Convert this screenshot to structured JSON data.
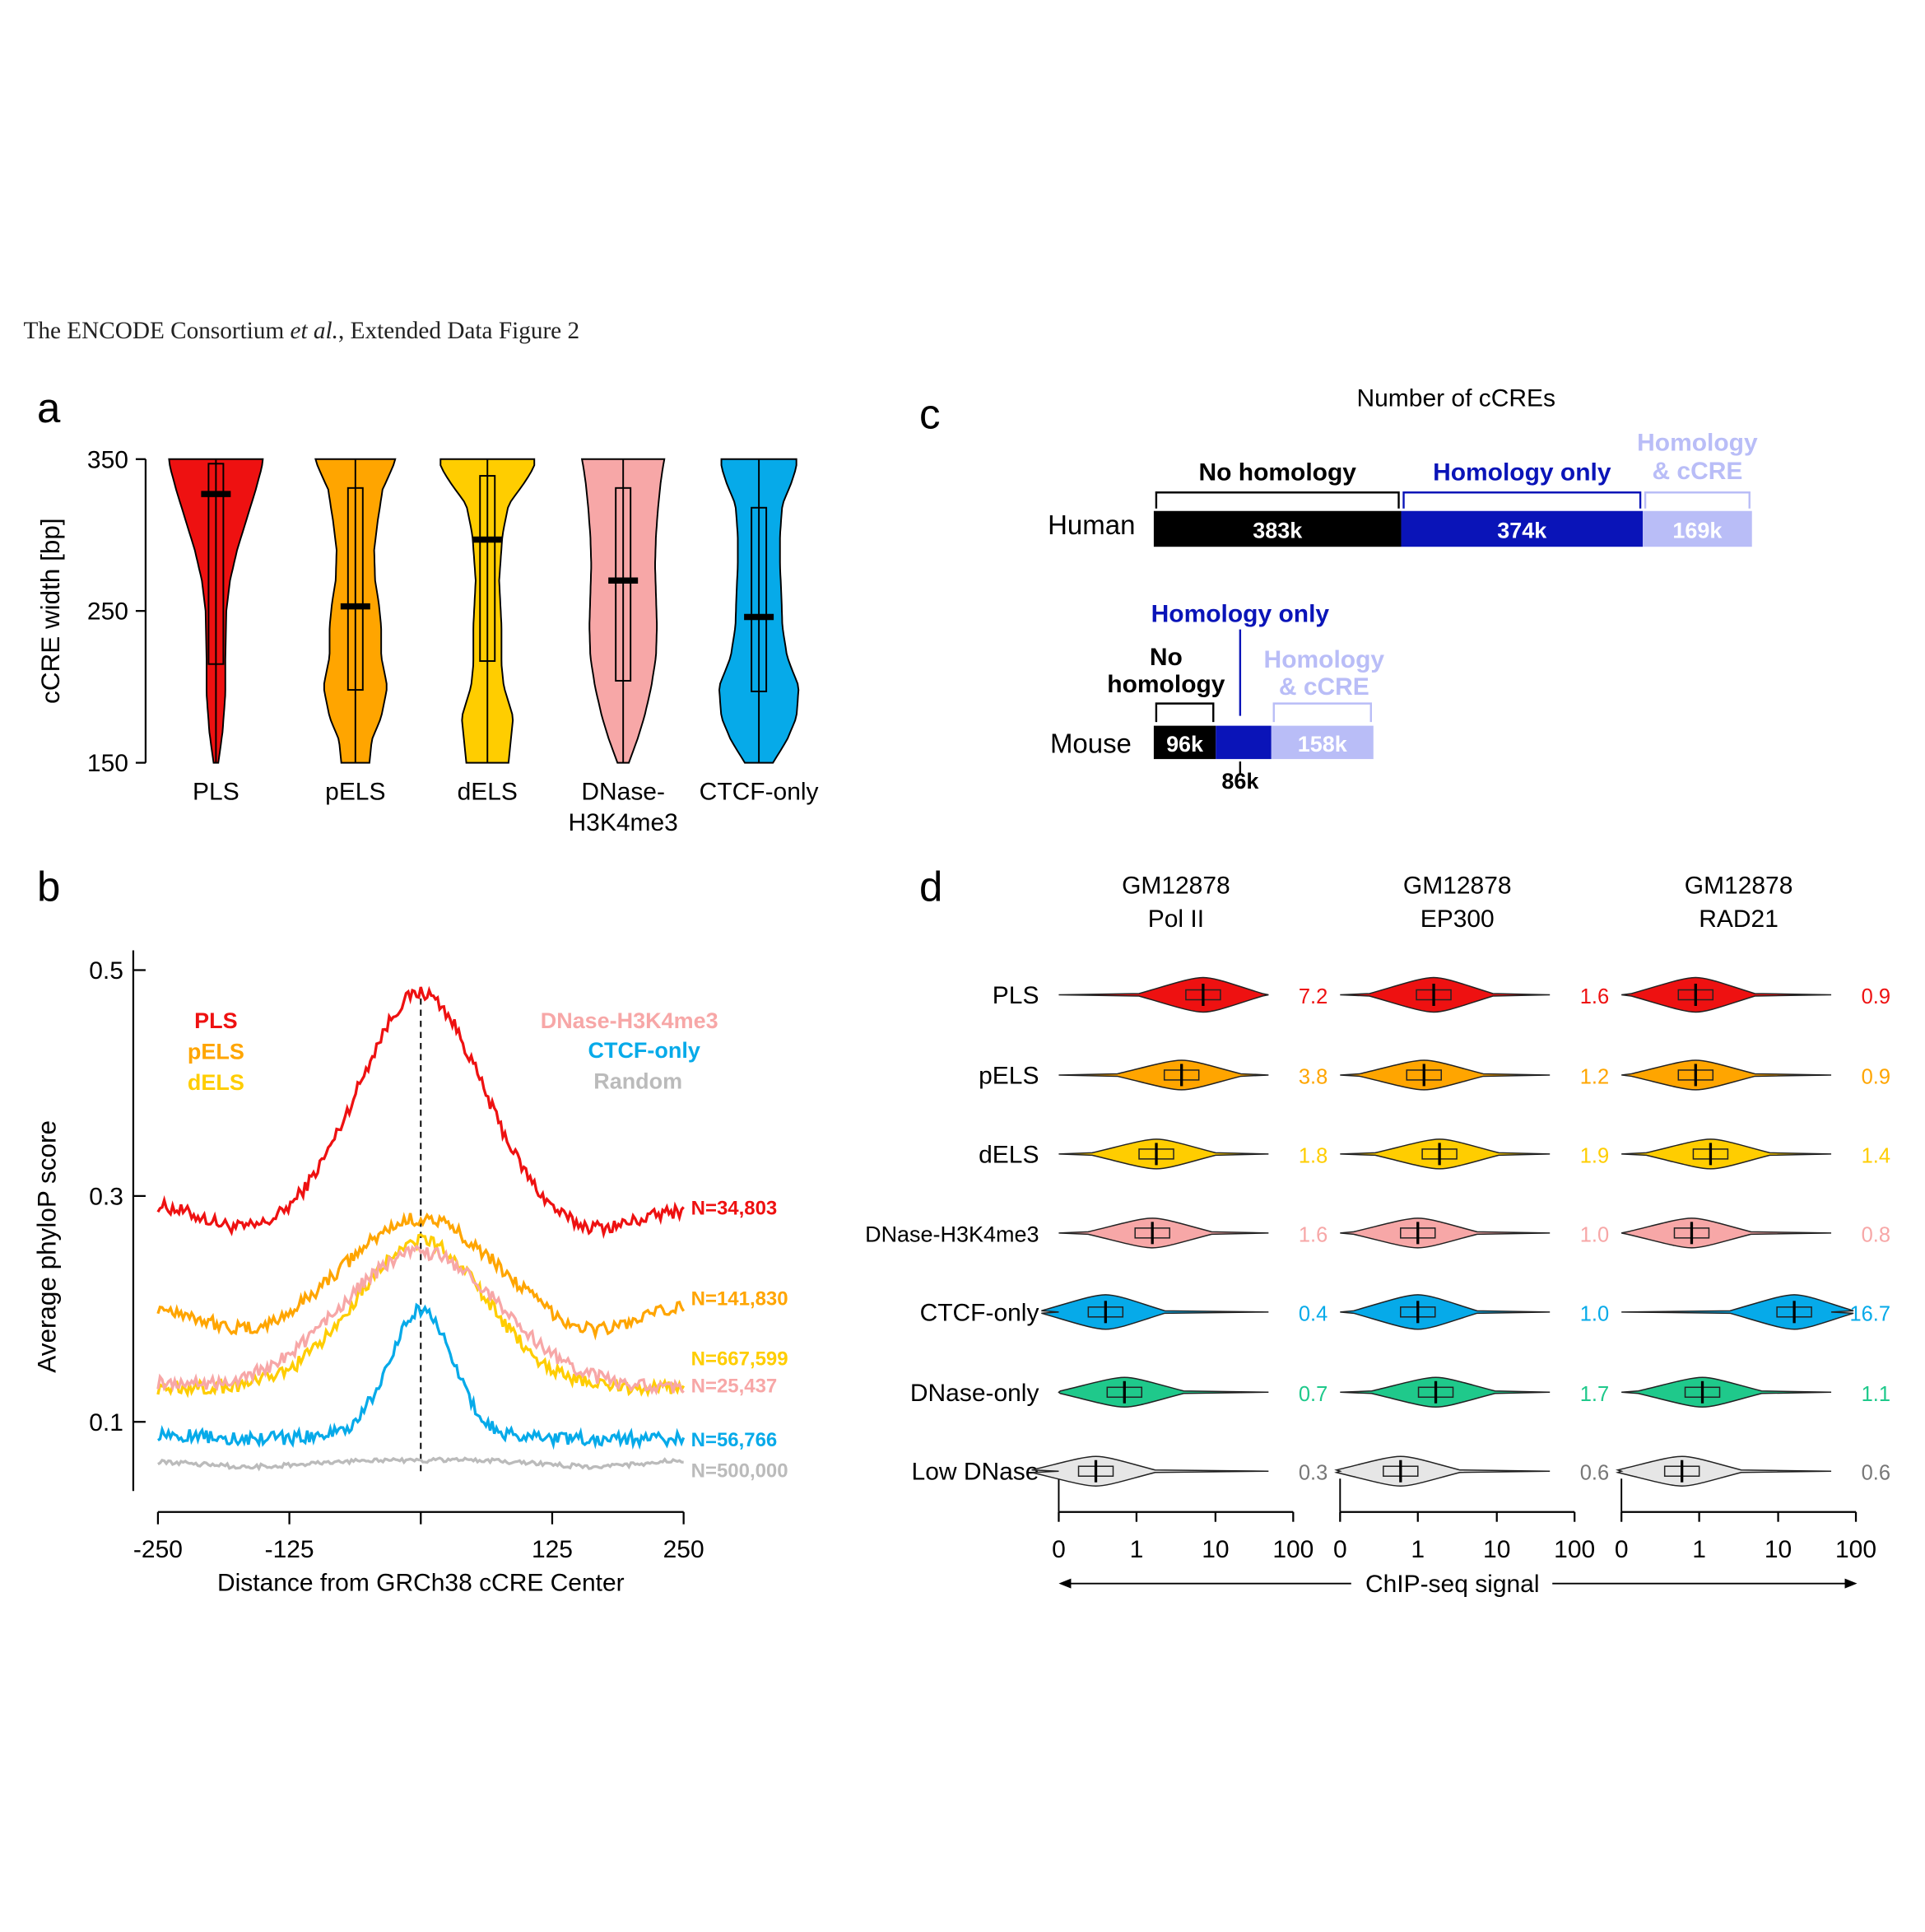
{
  "header": {
    "prefix": "The ENCODE Consortium ",
    "etal": "et al.",
    "suffix": ", Extended Data Figure 2"
  },
  "colors": {
    "PLS": "#ee1111",
    "pELS": "#ffa500",
    "dELS": "#ffcd00",
    "DNase-H3K4me3": "#f7a7a7",
    "CTCF-only": "#06aae9",
    "DNase-only": "#1fc98b",
    "Low DNase": "#e6e6e6",
    "Random": "#bbbbbb",
    "no_homology": "#000000",
    "homology_only": "#0a14b8",
    "homology_ccre": "#b9bdf7"
  },
  "chart_data": [
    {
      "panel": "a",
      "type": "violin",
      "ylabel": "cCRE width [bp]",
      "ylim": [
        150,
        350
      ],
      "yticks": [
        "350",
        "250",
        "150"
      ],
      "groups": [
        {
          "label": "PLS",
          "median": 327,
          "q1": 215,
          "q3": 347,
          "shape": [
            [
              150,
              0.05
            ],
            [
              170,
              0.14
            ],
            [
              195,
              0.2
            ],
            [
              220,
              0.2
            ],
            [
              250,
              0.22
            ],
            [
              270,
              0.3
            ],
            [
              290,
              0.45
            ],
            [
              310,
              0.65
            ],
            [
              330,
              0.85
            ],
            [
              345,
              0.98
            ],
            [
              350,
              1
            ]
          ]
        },
        {
          "label": "pELS",
          "median": 253,
          "q1": 198,
          "q3": 331,
          "shape": [
            [
              150,
              0.3
            ],
            [
              165,
              0.35
            ],
            [
              180,
              0.55
            ],
            [
              200,
              0.68
            ],
            [
              220,
              0.55
            ],
            [
              240,
              0.55
            ],
            [
              255,
              0.5
            ],
            [
              270,
              0.42
            ],
            [
              290,
              0.4
            ],
            [
              310,
              0.48
            ],
            [
              330,
              0.58
            ],
            [
              345,
              0.8
            ],
            [
              350,
              0.85
            ]
          ]
        },
        {
          "label": "dELS",
          "median": 297,
          "q1": 217,
          "q3": 339,
          "shape": [
            [
              150,
              0.45
            ],
            [
              165,
              0.5
            ],
            [
              180,
              0.55
            ],
            [
              200,
              0.35
            ],
            [
              215,
              0.3
            ],
            [
              240,
              0.3
            ],
            [
              270,
              0.25
            ],
            [
              300,
              0.32
            ],
            [
              320,
              0.45
            ],
            [
              335,
              0.8
            ],
            [
              345,
              1
            ],
            [
              350,
              1
            ]
          ]
        },
        {
          "label": "DNase-\nH3K4me3",
          "median": 270,
          "q1": 204,
          "q3": 331,
          "shape": [
            [
              150,
              0.12
            ],
            [
              165,
              0.3
            ],
            [
              180,
              0.45
            ],
            [
              200,
              0.6
            ],
            [
              220,
              0.7
            ],
            [
              240,
              0.72
            ],
            [
              260,
              0.7
            ],
            [
              280,
              0.68
            ],
            [
              300,
              0.7
            ],
            [
              320,
              0.75
            ],
            [
              335,
              0.8
            ],
            [
              345,
              0.85
            ],
            [
              350,
              0.88
            ]
          ]
        },
        {
          "label": "CTCF-only",
          "median": 246,
          "q1": 197,
          "q3": 318,
          "shape": [
            [
              150,
              0.3
            ],
            [
              165,
              0.6
            ],
            [
              180,
              0.8
            ],
            [
              200,
              0.85
            ],
            [
              220,
              0.6
            ],
            [
              240,
              0.5
            ],
            [
              260,
              0.48
            ],
            [
              280,
              0.45
            ],
            [
              300,
              0.45
            ],
            [
              320,
              0.5
            ],
            [
              335,
              0.7
            ],
            [
              345,
              0.8
            ],
            [
              350,
              0.8
            ]
          ]
        }
      ]
    },
    {
      "panel": "b",
      "type": "line",
      "xlabel": "Distance from GRCh38 cCRE Center",
      "ylabel": "Average phyloP score",
      "xlim": [
        -250,
        250
      ],
      "ylim": [
        0.05,
        0.5
      ],
      "xticks": [
        "-250",
        "-125",
        "125",
        "250"
      ],
      "yticks": [
        "0.5",
        "0.3",
        "0.1"
      ],
      "series": [
        {
          "name": "PLS",
          "n_label": "N=34,803",
          "left": 0.295,
          "right": 0.29,
          "min": 0.27,
          "peak": 0.48,
          "width": 55
        },
        {
          "name": "pELS",
          "n_label": "N=141,830",
          "left": 0.205,
          "right": 0.205,
          "min": 0.18,
          "peak": 0.28,
          "width": 60
        },
        {
          "name": "dELS",
          "n_label": "N=667,599",
          "left": 0.13,
          "right": 0.13,
          "min": 0.13,
          "peak": 0.26,
          "width": 62
        },
        {
          "name": "DNase-H3K4me3",
          "n_label": "N=25,437",
          "left": 0.135,
          "right": 0.13,
          "min": 0.13,
          "peak": 0.25,
          "width": 75
        },
        {
          "name": "CTCF-only",
          "n_label": "N=56,766",
          "left": 0.09,
          "right": 0.085,
          "min": 0.085,
          "peak": 0.2,
          "width": 30
        },
        {
          "name": "Random",
          "n_label": "N=500,000",
          "left": 0.065,
          "right": 0.067,
          "min": 0.06,
          "peak": 0.062,
          "width": 100
        }
      ]
    },
    {
      "panel": "c",
      "type": "bar",
      "title": "Number of cCREs",
      "rows": [
        {
          "label": "Human",
          "segments": [
            {
              "name": "No homology",
              "value": 383,
              "text": "383k"
            },
            {
              "name": "Homology only",
              "value": 374,
              "text": "374k"
            },
            {
              "name": "Homology & cCRE",
              "value": 169,
              "text": "169k"
            }
          ]
        },
        {
          "label": "Mouse",
          "segments": [
            {
              "name": "No homology",
              "value": 96,
              "text": "96k"
            },
            {
              "name": "Homology only",
              "value": 86,
              "text": "86k"
            },
            {
              "name": "Homology & cCRE",
              "value": 158,
              "text": "158k"
            }
          ]
        }
      ],
      "labels": {
        "no_homology": "No homology",
        "no_homology_line1": "No",
        "no_homology_line2": "homology",
        "homology_only": "Homology only",
        "homology_ccre_line1": "Homology",
        "homology_ccre_line2": "& cCRE"
      }
    },
    {
      "panel": "d",
      "type": "violin",
      "xlabel": "ChIP-seq signal",
      "x_scale": "log",
      "xticks": [
        "0",
        "1",
        "10",
        "100"
      ],
      "columns": [
        {
          "line1": "GM12878",
          "line2": "Pol II"
        },
        {
          "line1": "GM12878",
          "line2": "EP300"
        },
        {
          "line1": "GM12878",
          "line2": "RAD21"
        }
      ],
      "rows": [
        "PLS",
        "pELS",
        "dELS",
        "DNase-H3K4me3",
        "CTCF-only",
        "DNase-only",
        "Low DNase"
      ],
      "medians": [
        [
          "7.2",
          "1.6",
          "0.9"
        ],
        [
          "3.8",
          "1.2",
          "0.9"
        ],
        [
          "1.8",
          "1.9",
          "1.4"
        ],
        [
          "1.6",
          "1.0",
          "0.8"
        ],
        [
          "0.4",
          "1.0",
          "16.7"
        ],
        [
          "0.7",
          "1.7",
          "1.1"
        ],
        [
          "0.3",
          "0.6",
          "0.6"
        ]
      ]
    }
  ],
  "panel_letters": {
    "a": "a",
    "b": "b",
    "c": "c",
    "d": "d"
  }
}
